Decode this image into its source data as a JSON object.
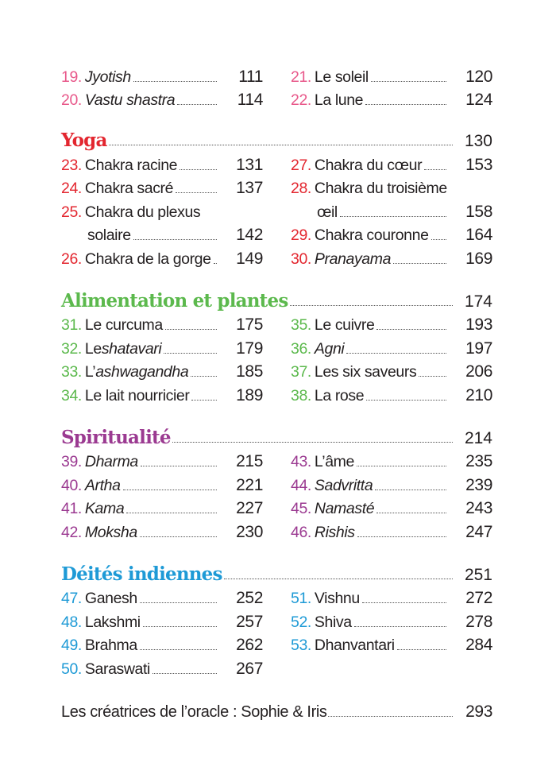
{
  "sections": [
    {
      "title": null,
      "page": null,
      "color": "#e8588a",
      "left": [
        {
          "num": "19.",
          "plain": "",
          "italic": "Jyotish",
          "page": "111"
        },
        {
          "num": "20.",
          "plain": "",
          "italic": "Vastu shastra",
          "page": "114"
        }
      ],
      "right": [
        {
          "num": "21.",
          "plain": "Le soleil",
          "italic": "",
          "page": "120"
        },
        {
          "num": "22.",
          "plain": "La lune",
          "italic": "",
          "page": "124"
        }
      ]
    },
    {
      "title": "Yoga",
      "page": "130",
      "color": "#e3262f",
      "left": [
        {
          "num": "23.",
          "plain": "Chakra racine",
          "italic": "",
          "page": "131"
        },
        {
          "num": "24.",
          "plain": "Chakra sacré",
          "italic": "",
          "page": "137"
        },
        {
          "num": "25.",
          "plain": "Chakra du plexus",
          "italic": "",
          "cont": "solaire",
          "page": "142"
        },
        {
          "num": "26.",
          "plain": "Chakra de la gorge",
          "italic": "",
          "page": "149"
        }
      ],
      "right": [
        {
          "num": "27.",
          "plain": "Chakra du cœur",
          "italic": "",
          "page": "153"
        },
        {
          "num": "28.",
          "plain": "Chakra du troisième",
          "italic": "",
          "cont": "œil",
          "page": "158"
        },
        {
          "num": "29.",
          "plain": "Chakra couronne",
          "italic": "",
          "page": "164"
        },
        {
          "num": "30.",
          "plain": "",
          "italic": "Pranayama",
          "page": "169"
        }
      ]
    },
    {
      "title": "Alimentation et plantes",
      "page": "174",
      "color": "#5cb94d",
      "left": [
        {
          "num": "31.",
          "plain": "Le curcuma",
          "italic": "",
          "page": "175"
        },
        {
          "num": "32.",
          "plain": "Le ",
          "italic": "shatavari",
          "page": "179"
        },
        {
          "num": "33.",
          "plain": "L’",
          "italic": "ashwagandha",
          "page": "185"
        },
        {
          "num": "34.",
          "plain": "Le lait nourricier",
          "italic": "",
          "page": "189"
        }
      ],
      "right": [
        {
          "num": "35.",
          "plain": "Le cuivre",
          "italic": "",
          "page": "193"
        },
        {
          "num": "36.",
          "plain": "",
          "italic": "Agni",
          "page": "197"
        },
        {
          "num": "37.",
          "plain": "Les six saveurs",
          "italic": "",
          "page": "206"
        },
        {
          "num": "38.",
          "plain": "La rose",
          "italic": "",
          "page": "210"
        }
      ]
    },
    {
      "title": "Spiritualité",
      "page": "214",
      "color": "#9b3a91",
      "left": [
        {
          "num": "39.",
          "plain": "",
          "italic": "Dharma",
          "page": "215"
        },
        {
          "num": "40.",
          "plain": "",
          "italic": "Artha",
          "page": "221"
        },
        {
          "num": "41.",
          "plain": "",
          "italic": "Kama",
          "page": "227"
        },
        {
          "num": "42.",
          "plain": "",
          "italic": "Moksha",
          "page": "230"
        }
      ],
      "right": [
        {
          "num": "43.",
          "plain": "L’âme",
          "italic": "",
          "page": "235"
        },
        {
          "num": "44.",
          "plain": "",
          "italic": "Sadvritta",
          "page": "239"
        },
        {
          "num": "45.",
          "plain": "",
          "italic": "Namasté",
          "page": "243"
        },
        {
          "num": "46.",
          "plain": "",
          "italic": "Rishis",
          "page": "247"
        }
      ]
    },
    {
      "title": "Déités indiennes",
      "page": "251",
      "color": "#1e9ad6",
      "left": [
        {
          "num": "47.",
          "plain": "Ganesh",
          "italic": "",
          "page": "252"
        },
        {
          "num": "48.",
          "plain": "Lakshmi",
          "italic": "",
          "page": "257"
        },
        {
          "num": "49.",
          "plain": "Brahma",
          "italic": "",
          "page": "262"
        },
        {
          "num": "50.",
          "plain": "Saraswati",
          "italic": "",
          "page": "267"
        }
      ],
      "right": [
        {
          "num": "51.",
          "plain": "Vishnu",
          "italic": "",
          "page": "272"
        },
        {
          "num": "52.",
          "plain": "Shiva",
          "italic": "",
          "page": "278"
        },
        {
          "num": "53.",
          "plain": "Dhanvantari",
          "italic": "",
          "page": "284"
        }
      ]
    }
  ],
  "final": {
    "title": "Les créatrices de l’oracle : Sophie & Iris",
    "page": "293"
  }
}
